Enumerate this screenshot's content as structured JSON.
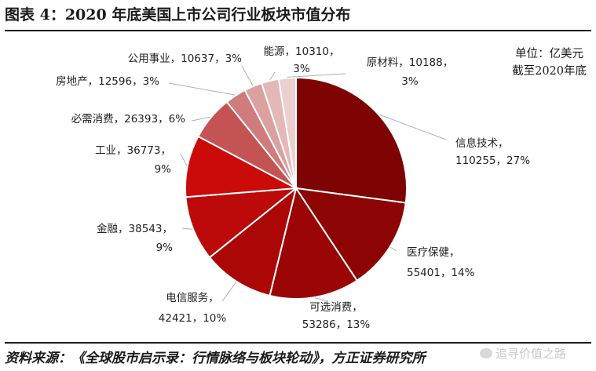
{
  "title": "图表 4：2020 年底美国上市公司行业板块市值分布",
  "unit_note": [
    "单位：亿美元",
    "截至2020年底"
  ],
  "source": "资料来源：《全球股市启示录：行情脉络与板块轮动》，方正证券研究所",
  "watermark": "追寻价值之路",
  "chart_data": {
    "type": "pie",
    "title": "",
    "unit": "亿美元",
    "slices": [
      {
        "name": "信息技术",
        "value": 110255,
        "percent": "27%",
        "color": "#7e0303"
      },
      {
        "name": "医疗保健",
        "value": 55401,
        "percent": "14%",
        "color": "#8d0404"
      },
      {
        "name": "可选消费",
        "value": 53286,
        "percent": "13%",
        "color": "#9b0505"
      },
      {
        "name": "电信服务",
        "value": 42421,
        "percent": "10%",
        "color": "#ab0707"
      },
      {
        "name": "金融",
        "value": 38543,
        "percent": "9%",
        "color": "#bc0909"
      },
      {
        "name": "工业",
        "value": 36773,
        "percent": "9%",
        "color": "#cb0a0a"
      },
      {
        "name": "必需消费",
        "value": 26393,
        "percent": "6%",
        "color": "#c45454"
      },
      {
        "name": "房地产",
        "value": 12596,
        "percent": "3%",
        "color": "#d07c7c"
      },
      {
        "name": "公用事业",
        "value": 10637,
        "percent": "3%",
        "color": "#dba1a1"
      },
      {
        "name": "能源",
        "value": 10310,
        "percent": "3%",
        "color": "#e4b8b8"
      },
      {
        "name": "原材料",
        "value": 10188,
        "percent": "3%",
        "color": "#ecd0d0"
      }
    ],
    "start_angle": "12 o'clock",
    "direction": "clockwise",
    "legend": "none",
    "label_style": "outside labels with leader lines"
  }
}
